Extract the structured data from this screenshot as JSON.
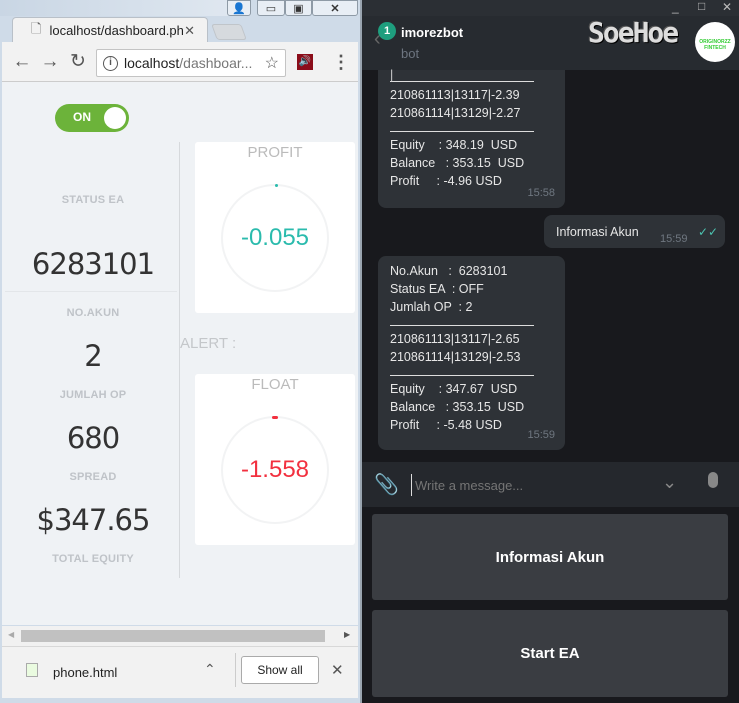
{
  "browser": {
    "tab_title": "localhost/dashboard.php",
    "url_host": "localhost",
    "url_path": "/dashboar...",
    "download": {
      "filename": "phone.html",
      "show_all": "Show all"
    }
  },
  "dashboard": {
    "status_toggle": "ON",
    "status_label": "STATUS EA",
    "account_number": "6283101",
    "account_label": "NO.AKUN",
    "open_positions": "2",
    "open_positions_label": "JUMLAH OP",
    "spread": "680",
    "spread_label": "SPREAD",
    "total_equity": "$347.65",
    "total_equity_label": "TOTAL EQUITY",
    "alert_label": "ALERT :",
    "profit": {
      "title": "PROFIT",
      "value": "-0.055",
      "color": "#2bbbad"
    },
    "float": {
      "title": "FLOAT",
      "value": "-1.558",
      "color": "#f2303f"
    }
  },
  "telegram": {
    "chat_name": "imorezbot",
    "chat_subtitle": "bot",
    "unread_badge": "1",
    "watermark": "SoeHoe",
    "watermark_sub": "ORIGINORZZ FINTECH",
    "messages": [
      {
        "partial": "|",
        "lines": [
          "210861113|13117|-2.39",
          "210861114|13129|-2.27",
          "Equity    : 348.19  USD",
          "Balance   : 353.15  USD",
          "Profit     : -4.96 USD"
        ],
        "time": "15:58"
      },
      {
        "outgoing": true,
        "text": "Informasi Akun",
        "time": "15:59"
      },
      {
        "lines": [
          "No.Akun   :  6283101",
          "Status EA  : OFF",
          "Jumlah OP  : 2",
          "210861113|13117|-2.65",
          "210861114|13129|-2.53",
          "Equity    : 347.67  USD",
          "Balance   : 353.15  USD",
          "Profit     : -5.48 USD"
        ],
        "time": "15:59"
      }
    ],
    "compose_placeholder": "Write a message...",
    "keyboard": [
      "Informasi Akun",
      "Start EA"
    ]
  }
}
